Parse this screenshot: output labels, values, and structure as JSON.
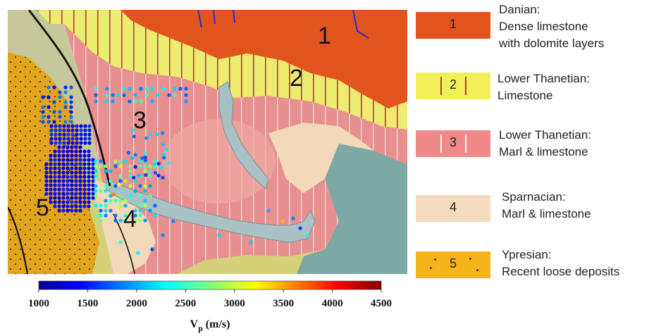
{
  "map": {
    "unit_labels": [
      "1",
      "2",
      "3",
      "4",
      "5",
      "4",
      "5"
    ],
    "colors": {
      "danian": "#e2541e",
      "lower_thanetian_limestone": "#e8e06a",
      "lower_thanetian_marl": "#e89090",
      "sparnacian": "#f1d9b9",
      "ypresian": "#e0a51c",
      "satellite_teal": "#7ea8a4",
      "satellite_grey": "#b9bfb4",
      "channel": "#a9c0c4"
    }
  },
  "colorbar": {
    "ticks": [
      "1000",
      "1500",
      "2000",
      "2500",
      "3000",
      "3500",
      "4000",
      "4500"
    ],
    "label_main": "V",
    "label_sub": "p",
    "label_unit": "(m/s)",
    "range": [
      1000,
      4500
    ],
    "colormap": "jet"
  },
  "legend": [
    {
      "number": "1",
      "title": "Danian:",
      "lines": [
        "Dense limestone",
        "with dolomite layers"
      ],
      "color": "#e2541e",
      "pattern": "solid"
    },
    {
      "number": "2",
      "title": "Lower Thanetian:",
      "lines": [
        "Limestone"
      ],
      "color": "#f2f058",
      "pattern": "red-bars"
    },
    {
      "number": "3",
      "title": "Lower Thanetian:",
      "lines": [
        "Marl & limestone"
      ],
      "color": "#f08a8a",
      "pattern": "white-bars"
    },
    {
      "number": "4",
      "title": "Sparnacian:",
      "lines": [
        "Marl & limestone"
      ],
      "color": "#f5dcc0",
      "pattern": "solid"
    },
    {
      "number": "5",
      "title": "Ypresian:",
      "lines": [
        "Recent loose deposits"
      ],
      "color": "#f4b41a",
      "pattern": "dots"
    }
  ]
}
